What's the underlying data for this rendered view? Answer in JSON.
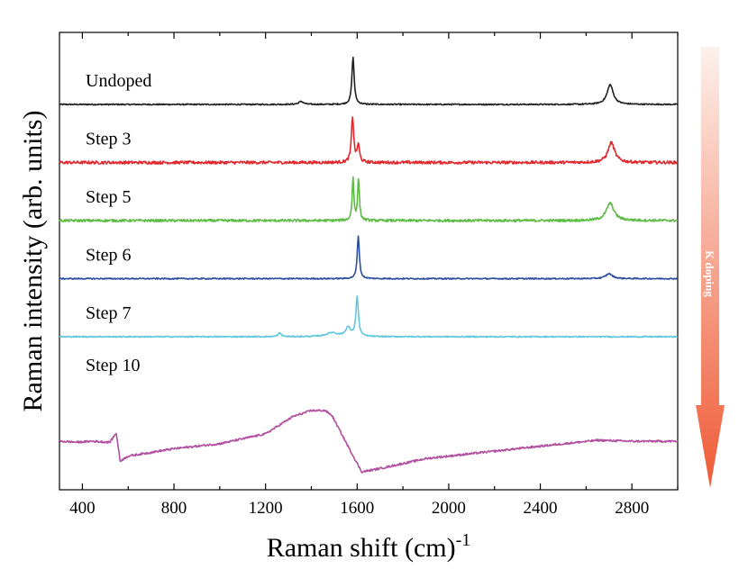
{
  "chart_data": {
    "type": "line",
    "title": "",
    "xlabel": "Raman shift (cm)",
    "xlabel_superscript": "-1",
    "ylabel": "Raman intensity (arb. units)",
    "xlim": [
      300,
      3000
    ],
    "x_ticks": [
      400,
      800,
      1200,
      1600,
      2000,
      2400,
      2800
    ],
    "x_tick_labels": [
      "400",
      "800",
      "1200",
      "1600",
      "2000",
      "2400",
      "2800"
    ],
    "y_ticks_shown": false,
    "grid": false,
    "legend": "inline labels on left",
    "annotation": {
      "text": "K doping",
      "direction": "downward arrow, increasing doping",
      "color_top": "#fdf0ea",
      "color_bottom": "#ef5a35"
    },
    "series": [
      {
        "name": "Undoped",
        "color": "#1f1f1f",
        "offset": 0,
        "noise": 0.012,
        "peaks": [
          {
            "center": 1355,
            "height": 0.06,
            "width": 25
          },
          {
            "center": 1582,
            "height": 0.95,
            "width": 12
          },
          {
            "center": 2705,
            "height": 0.4,
            "width": 32
          }
        ]
      },
      {
        "name": "Step 3",
        "color": "#e0282e",
        "offset": -1,
        "noise": 0.03,
        "peaks": [
          {
            "center": 1580,
            "height": 0.92,
            "width": 12
          },
          {
            "center": 1605,
            "height": 0.35,
            "width": 12
          },
          {
            "center": 2710,
            "height": 0.4,
            "width": 35
          }
        ]
      },
      {
        "name": "Step 5",
        "color": "#5dbb46",
        "offset": -2,
        "noise": 0.025,
        "peaks": [
          {
            "center": 1582,
            "height": 0.85,
            "width": 9
          },
          {
            "center": 1606,
            "height": 0.85,
            "width": 9
          },
          {
            "center": 2705,
            "height": 0.35,
            "width": 40
          }
        ]
      },
      {
        "name": "Step 6",
        "color": "#2d4e9f",
        "offset": -3,
        "noise": 0.012,
        "peaks": [
          {
            "center": 1605,
            "height": 0.87,
            "width": 11
          },
          {
            "center": 2700,
            "height": 0.1,
            "width": 35
          }
        ]
      },
      {
        "name": "Step 7",
        "color": "#62c6dc",
        "offset": -4,
        "noise": 0.012,
        "peaks": [
          {
            "center": 1262,
            "height": 0.07,
            "width": 18
          },
          {
            "center": 1490,
            "height": 0.08,
            "width": 60
          },
          {
            "center": 1560,
            "height": 0.18,
            "width": 25
          },
          {
            "center": 1600,
            "height": 0.8,
            "width": 13
          }
        ]
      },
      {
        "name": "Step 10",
        "color": "#b0509e",
        "offset": -5.8,
        "noise": 0.02,
        "profile": [
          [
            300,
            0.0
          ],
          [
            380,
            -0.02
          ],
          [
            440,
            0.0
          ],
          [
            520,
            -0.02
          ],
          [
            548,
            0.17
          ],
          [
            565,
            -0.4
          ],
          [
            600,
            -0.3
          ],
          [
            800,
            -0.15
          ],
          [
            1000,
            -0.05
          ],
          [
            1200,
            0.15
          ],
          [
            1320,
            0.5
          ],
          [
            1400,
            0.62
          ],
          [
            1460,
            0.62
          ],
          [
            1490,
            0.52
          ],
          [
            1560,
            -0.1
          ],
          [
            1620,
            -0.62
          ],
          [
            1700,
            -0.55
          ],
          [
            1900,
            -0.35
          ],
          [
            2100,
            -0.25
          ],
          [
            2400,
            -0.1
          ],
          [
            2650,
            0.02
          ],
          [
            2800,
            0.0
          ],
          [
            3000,
            0.0
          ]
        ]
      }
    ]
  }
}
